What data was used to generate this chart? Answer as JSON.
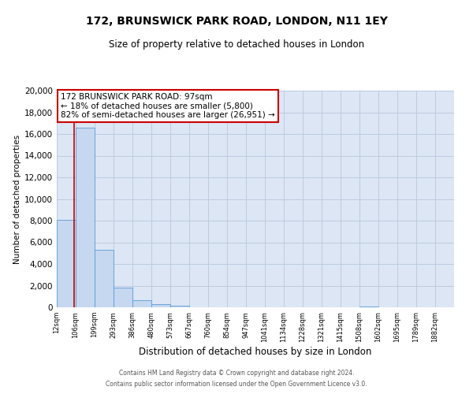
{
  "title": "172, BRUNSWICK PARK ROAD, LONDON, N11 1EY",
  "subtitle": "Size of property relative to detached houses in London",
  "xlabel": "Distribution of detached houses by size in London",
  "ylabel": "Number of detached properties",
  "bin_labels": [
    "12sqm",
    "106sqm",
    "199sqm",
    "293sqm",
    "386sqm",
    "480sqm",
    "573sqm",
    "667sqm",
    "760sqm",
    "854sqm",
    "947sqm",
    "1041sqm",
    "1134sqm",
    "1228sqm",
    "1321sqm",
    "1415sqm",
    "1508sqm",
    "1602sqm",
    "1695sqm",
    "1789sqm",
    "1882sqm"
  ],
  "bar_heights": [
    8100,
    16600,
    5300,
    1800,
    650,
    300,
    150,
    0,
    0,
    0,
    0,
    0,
    0,
    0,
    0,
    0,
    100,
    0,
    0,
    0,
    0
  ],
  "bar_color": "#c5d8f0",
  "bar_edge_color": "#5b9bd5",
  "property_line_x": 1,
  "bin_edges": [
    0,
    1,
    2,
    3,
    4,
    5,
    6,
    7,
    8,
    9,
    10,
    11,
    12,
    13,
    14,
    15,
    16,
    17,
    18,
    19,
    20
  ],
  "annotation_title": "172 BRUNSWICK PARK ROAD: 97sqm",
  "annotation_line1": "← 18% of detached houses are smaller (5,800)",
  "annotation_line2": "82% of semi-detached houses are larger (26,951) →",
  "annotation_box_color": "#ffffff",
  "annotation_box_edge": "#cc0000",
  "red_line_color": "#cc0000",
  "ylim": [
    0,
    20000
  ],
  "yticks": [
    0,
    2000,
    4000,
    6000,
    8000,
    10000,
    12000,
    14000,
    16000,
    18000,
    20000
  ],
  "footer_line1": "Contains HM Land Registry data © Crown copyright and database right 2024.",
  "footer_line2": "Contains public sector information licensed under the Open Government Licence v3.0.",
  "bg_color": "#ffffff",
  "plot_bg_color": "#dce6f5",
  "grid_color": "#b8c8dc",
  "title_fontsize": 10,
  "subtitle_fontsize": 8.5,
  "ylabel_fontsize": 7.5,
  "xlabel_fontsize": 8.5,
  "ytick_fontsize": 7.5,
  "xtick_fontsize": 6.0,
  "ann_fontsize": 7.5,
  "footer_fontsize": 5.5
}
